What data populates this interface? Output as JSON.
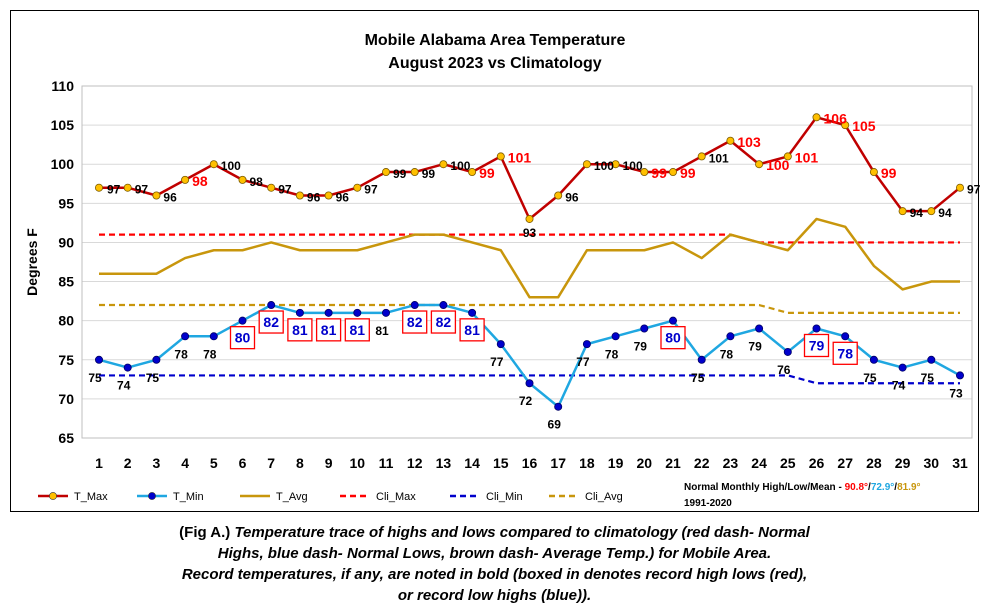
{
  "chart_data": {
    "type": "line",
    "title": "Mobile Alabama Area Temperature",
    "subtitle": "August 2023 vs Climatology",
    "xlabel": "",
    "ylabel": "Degrees F",
    "ylim": [
      65,
      110
    ],
    "yticks": [
      65,
      70,
      75,
      80,
      85,
      90,
      95,
      100,
      105,
      110
    ],
    "x": [
      1,
      2,
      3,
      4,
      5,
      6,
      7,
      8,
      9,
      10,
      11,
      12,
      13,
      14,
      15,
      16,
      17,
      18,
      19,
      20,
      21,
      22,
      23,
      24,
      25,
      26,
      27,
      28,
      29,
      30,
      31
    ],
    "x_tick_labels": [
      "1",
      "2",
      "3",
      "4",
      "5",
      "6",
      "7",
      "8",
      "9",
      "10",
      "11",
      "12",
      "13",
      "14",
      "15",
      "16",
      "17",
      "18",
      "19",
      "20",
      "21",
      "22",
      "23",
      "24",
      "25",
      "26",
      "27",
      "28",
      "29",
      "30",
      "31"
    ],
    "grid": "horizontal",
    "legend_position": "bottom",
    "series": [
      {
        "name": "T_Max",
        "color": "#c00000",
        "marker": "#ffc000",
        "values": [
          97,
          97,
          96,
          98,
          100,
          98,
          97,
          96,
          96,
          97,
          99,
          99,
          100,
          99,
          101,
          93,
          96,
          100,
          100,
          99,
          99,
          101,
          103,
          100,
          101,
          106,
          105,
          99,
          94,
          94,
          97
        ]
      },
      {
        "name": "T_Min",
        "color": "#1fa7e1",
        "marker": "#0000cc",
        "values": [
          75,
          74,
          75,
          78,
          78,
          80,
          82,
          81,
          81,
          81,
          81,
          82,
          82,
          81,
          77,
          72,
          69,
          77,
          78,
          79,
          80,
          75,
          78,
          79,
          76,
          79,
          78,
          75,
          74,
          75,
          73
        ]
      },
      {
        "name": "T_Avg",
        "color": "#c8960c",
        "values": [
          86,
          86,
          86,
          88,
          89,
          89,
          90,
          89,
          89,
          89,
          90,
          91,
          91,
          90,
          89,
          83,
          83,
          89,
          89,
          89,
          90,
          88,
          91,
          90,
          89,
          93,
          92,
          87,
          84,
          85,
          85
        ]
      },
      {
        "name": "Cli_Max",
        "color": "#ff0000",
        "dash": true,
        "values": [
          91,
          91,
          91,
          91,
          91,
          91,
          91,
          91,
          91,
          91,
          91,
          91,
          91,
          91,
          91,
          91,
          91,
          91,
          91,
          91,
          91,
          91,
          91,
          90,
          90,
          90,
          90,
          90,
          90,
          90,
          90
        ]
      },
      {
        "name": "Cli_Min",
        "color": "#0000cc",
        "dash": true,
        "values": [
          73,
          73,
          73,
          73,
          73,
          73,
          73,
          73,
          73,
          73,
          73,
          73,
          73,
          73,
          73,
          73,
          73,
          73,
          73,
          73,
          73,
          73,
          73,
          73,
          73,
          72,
          72,
          72,
          72,
          72,
          72
        ]
      },
      {
        "name": "Cli_Avg",
        "color": "#c8960c",
        "dash": true,
        "values": [
          82,
          82,
          82,
          82,
          82,
          82,
          82,
          82,
          82,
          82,
          82,
          82,
          82,
          82,
          82,
          82,
          82,
          82,
          82,
          82,
          82,
          82,
          82,
          82,
          81,
          81,
          81,
          81,
          81,
          81,
          81
        ]
      }
    ],
    "max_label_strings": [
      "97",
      "97",
      "96",
      "98",
      "100",
      "98",
      "97",
      "96",
      "96",
      "97",
      "99",
      "99",
      "100",
      "99",
      "101",
      "93",
      "96",
      "100",
      "100",
      "99",
      "99",
      "101",
      "103",
      "100",
      "101",
      "106",
      "105",
      "99",
      "94",
      "94",
      "97"
    ],
    "max_record_days": [
      4,
      14,
      15,
      20,
      21,
      23,
      24,
      25,
      26,
      27,
      28
    ],
    "min_label_strings": [
      "75",
      "74",
      "75",
      "78",
      "78",
      "80",
      "82",
      "81",
      "81",
      "81",
      "81",
      "82",
      "82",
      "81",
      "77",
      "72",
      "69",
      "77",
      "78",
      "79",
      "80",
      "75",
      "78",
      "79",
      "76",
      "79",
      "78",
      "75",
      "74",
      "75",
      "73"
    ],
    "min_record_boxed_days": [
      6,
      7,
      8,
      9,
      10,
      12,
      13,
      14,
      21,
      26,
      27
    ],
    "min_record_unboxed_days": [],
    "normals_note": {
      "prefix": "Normal Monthly High/Low/Mean - ",
      "high": "90.8°",
      "sep1": "/",
      "low": "72.9°",
      "sep2": "/",
      "mean": "81.9°",
      "period": "1991-2020",
      "high_color": "#ff0000",
      "low_color": "#1fa7e1",
      "mean_color": "#c8960c"
    }
  },
  "caption": {
    "line1_prefix": "(Fig A.) ",
    "line1": "Temperature trace of highs and lows compared to climatology (red dash- Normal",
    "line2": "Highs, blue dash- Normal Lows, brown dash- Average Temp.) for Mobile Area.",
    "line3": "Record temperatures, if any, are noted in bold (boxed in denotes record high lows (red),",
    "line4": "or record low highs (blue))."
  }
}
